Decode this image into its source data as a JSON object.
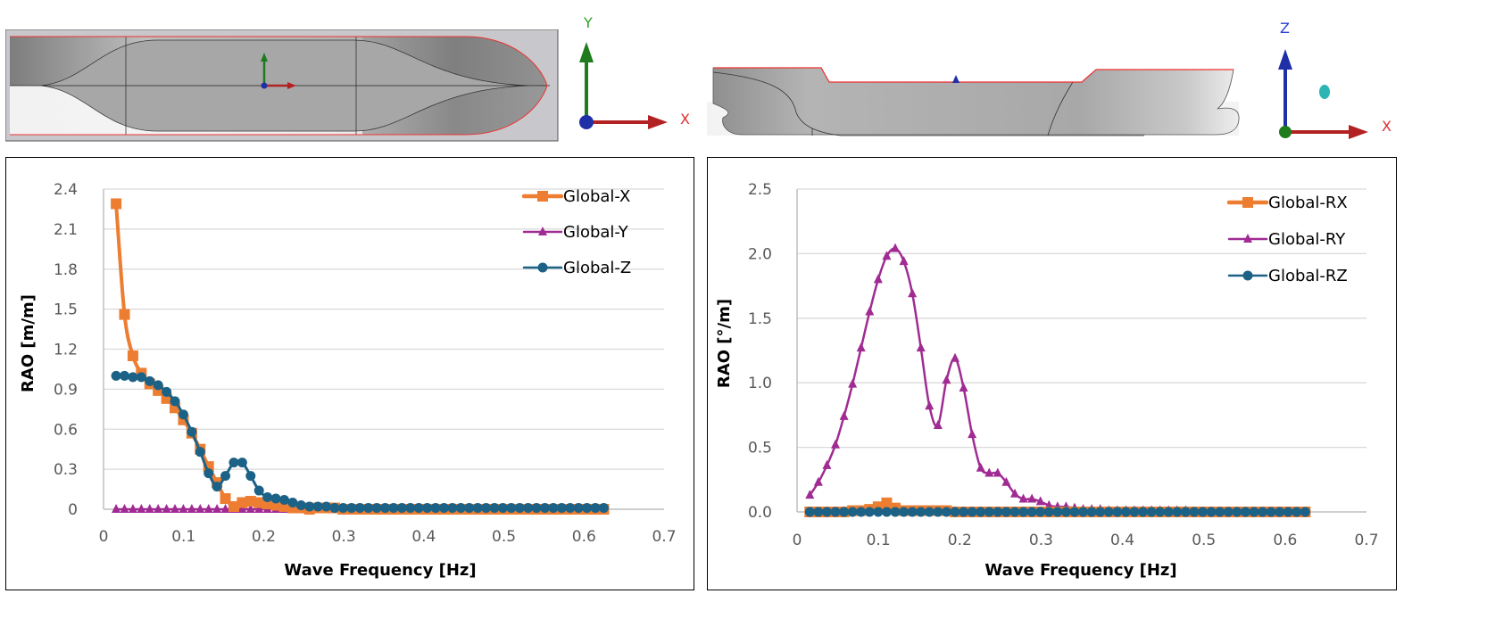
{
  "views": {
    "top_view": {
      "axes": {
        "vertical": "Y",
        "horizontal": "X"
      }
    },
    "side_view": {
      "axes": {
        "vertical": "Z",
        "horizontal": "X"
      }
    }
  },
  "colors": {
    "x_series": "#ED7D31",
    "y_series": "#A02B93",
    "z_series": "#1B6286",
    "grid": "#D9D9D9",
    "axis_green": "#1E7B1E",
    "axis_red": "#B22222",
    "axis_blue": "#1F2FA8"
  },
  "chart_data": [
    {
      "type": "line",
      "title": "",
      "xlabel": "Wave Frequency [Hz]",
      "ylabel": "RAO [m/m]",
      "xlim": [
        0,
        0.7
      ],
      "ylim": [
        0,
        2.4
      ],
      "xticks": [
        "0",
        "0.1",
        "0.2",
        "0.3",
        "0.4",
        "0.5",
        "0.6",
        "0.7"
      ],
      "yticks": [
        "0",
        "0.3",
        "0.6",
        "0.9",
        "1.2",
        "1.5",
        "1.8",
        "2.1",
        "2.4"
      ],
      "grid": true,
      "legend": "top-right",
      "x": [
        0.0157,
        0.0262,
        0.0367,
        0.0472,
        0.0577,
        0.0682,
        0.0787,
        0.0892,
        0.0997,
        0.1102,
        0.1207,
        0.1312,
        0.1417,
        0.1522,
        0.1627,
        0.1732,
        0.1837,
        0.1942,
        0.2047,
        0.2152,
        0.2257,
        0.2362,
        0.2467,
        0.2572,
        0.2677,
        0.2782,
        0.2887,
        0.2992,
        0.3097,
        0.3202,
        0.3307,
        0.3412,
        0.3517,
        0.3622,
        0.3727,
        0.3832,
        0.3937,
        0.4042,
        0.4147,
        0.4252,
        0.4357,
        0.4462,
        0.4567,
        0.4672,
        0.4777,
        0.4882,
        0.4987,
        0.5092,
        0.5197,
        0.5302,
        0.5407,
        0.5512,
        0.5617,
        0.5722,
        0.5827,
        0.5932,
        0.6037,
        0.6142,
        0.6247
      ],
      "series": [
        {
          "name": "Global-X",
          "marker": "square",
          "values": [
            2.29,
            1.46,
            1.15,
            1.02,
            0.94,
            0.89,
            0.83,
            0.76,
            0.67,
            0.57,
            0.45,
            0.32,
            0.2,
            0.08,
            0.02,
            0.05,
            0.06,
            0.05,
            0.04,
            0.03,
            0.02,
            0.01,
            0.01,
            0.0,
            0.01,
            0.01,
            0.01,
            0.0,
            0.0,
            0.0,
            0.0,
            0.0,
            0.0,
            0.0,
            0.0,
            0.0,
            0.0,
            0.0,
            0.0,
            0.0,
            0.0,
            0.0,
            0.0,
            0.0,
            0.0,
            0.0,
            0.0,
            0.0,
            0.0,
            0.0,
            0.0,
            0.0,
            0.0,
            0.0,
            0.0,
            0.0,
            0.0,
            0.0,
            0.0
          ]
        },
        {
          "name": "Global-Y",
          "marker": "triangle",
          "values": [
            0,
            0,
            0,
            0,
            0,
            0,
            0,
            0,
            0,
            0,
            0,
            0,
            0,
            0,
            0,
            0,
            0,
            0,
            0,
            0,
            0,
            0,
            0,
            0,
            0,
            0,
            0,
            0,
            0,
            0,
            0,
            0,
            0,
            0,
            0,
            0,
            0,
            0,
            0,
            0,
            0,
            0,
            0,
            0,
            0,
            0,
            0,
            0,
            0,
            0,
            0,
            0,
            0,
            0,
            0,
            0,
            0,
            0,
            0
          ]
        },
        {
          "name": "Global-Z",
          "marker": "circle",
          "values": [
            1.0,
            1.0,
            0.99,
            0.99,
            0.96,
            0.93,
            0.88,
            0.81,
            0.71,
            0.58,
            0.43,
            0.27,
            0.17,
            0.25,
            0.35,
            0.35,
            0.25,
            0.14,
            0.09,
            0.08,
            0.07,
            0.05,
            0.03,
            0.02,
            0.02,
            0.02,
            0.01,
            0.01,
            0.01,
            0.01,
            0.01,
            0.01,
            0.01,
            0.01,
            0.01,
            0.01,
            0.01,
            0.01,
            0.01,
            0.01,
            0.01,
            0.01,
            0.01,
            0.01,
            0.01,
            0.01,
            0.01,
            0.01,
            0.01,
            0.01,
            0.01,
            0.01,
            0.01,
            0.01,
            0.01,
            0.01,
            0.01,
            0.01,
            0.01
          ]
        }
      ]
    },
    {
      "type": "line",
      "title": "",
      "xlabel": "Wave Frequency [Hz]",
      "ylabel": "RAO [°/m]",
      "xlim": [
        0,
        0.7
      ],
      "ylim": [
        0,
        2.5
      ],
      "xticks": [
        "0",
        "0.1",
        "0.2",
        "0.3",
        "0.4",
        "0.5",
        "0.6",
        "0.7"
      ],
      "yticks": [
        "0.0",
        "0.5",
        "1.0",
        "1.5",
        "2.0",
        "2.5"
      ],
      "grid": true,
      "legend": "top-right",
      "x": [
        0.0157,
        0.0262,
        0.0367,
        0.0472,
        0.0577,
        0.0682,
        0.0787,
        0.0892,
        0.0997,
        0.1102,
        0.1207,
        0.1312,
        0.1417,
        0.1522,
        0.1627,
        0.1732,
        0.1837,
        0.1942,
        0.2047,
        0.2152,
        0.2257,
        0.2362,
        0.2467,
        0.2572,
        0.2677,
        0.2782,
        0.2887,
        0.2992,
        0.3097,
        0.3202,
        0.3307,
        0.3412,
        0.3517,
        0.3622,
        0.3727,
        0.3832,
        0.3937,
        0.4042,
        0.4147,
        0.4252,
        0.4357,
        0.4462,
        0.4567,
        0.4672,
        0.4777,
        0.4882,
        0.4987,
        0.5092,
        0.5197,
        0.5302,
        0.5407,
        0.5512,
        0.5617,
        0.5722,
        0.5827,
        0.5932,
        0.6037,
        0.6142,
        0.6247
      ],
      "series": [
        {
          "name": "Global-RX",
          "marker": "square",
          "values": [
            0,
            0,
            0,
            0,
            0,
            0.01,
            0.01,
            0.02,
            0.04,
            0.07,
            0.03,
            0.01,
            0.01,
            0.01,
            0.01,
            0.01,
            0.01,
            0,
            0,
            0,
            0,
            0,
            0,
            0,
            0,
            0,
            0,
            0,
            0,
            0,
            0,
            0,
            0,
            0,
            0,
            0,
            0,
            0,
            0,
            0,
            0,
            0,
            0,
            0,
            0,
            0,
            0,
            0,
            0,
            0,
            0,
            0,
            0,
            0,
            0,
            0,
            0,
            0,
            0
          ]
        },
        {
          "name": "Global-RY",
          "marker": "triangle",
          "values": [
            0.13,
            0.23,
            0.36,
            0.52,
            0.74,
            0.99,
            1.27,
            1.55,
            1.8,
            1.98,
            2.04,
            1.94,
            1.69,
            1.27,
            0.82,
            0.67,
            1.02,
            1.19,
            0.96,
            0.6,
            0.34,
            0.3,
            0.3,
            0.23,
            0.14,
            0.1,
            0.1,
            0.08,
            0.05,
            0.04,
            0.04,
            0.03,
            0.02,
            0.02,
            0.02,
            0.01,
            0.01,
            0.01,
            0.01,
            0.01,
            0.01,
            0.01,
            0.01,
            0.01,
            0.01,
            0.0,
            0.0,
            0.0,
            0.0,
            0.0,
            0.0,
            0.0,
            0.0,
            0.0,
            0.0,
            0.0,
            0.0,
            0.0,
            0.0
          ]
        },
        {
          "name": "Global-RZ",
          "marker": "circle",
          "values": [
            0,
            0,
            0,
            0,
            0,
            0,
            0,
            0,
            0,
            0,
            0,
            0,
            0,
            0,
            0,
            0,
            0,
            0,
            0,
            0,
            0,
            0,
            0,
            0,
            0,
            0,
            0,
            0,
            0,
            0,
            0,
            0,
            0,
            0,
            0,
            0,
            0,
            0,
            0,
            0,
            0,
            0,
            0,
            0,
            0,
            0,
            0,
            0,
            0,
            0,
            0,
            0,
            0,
            0,
            0,
            0,
            0,
            0,
            0
          ]
        }
      ]
    }
  ]
}
